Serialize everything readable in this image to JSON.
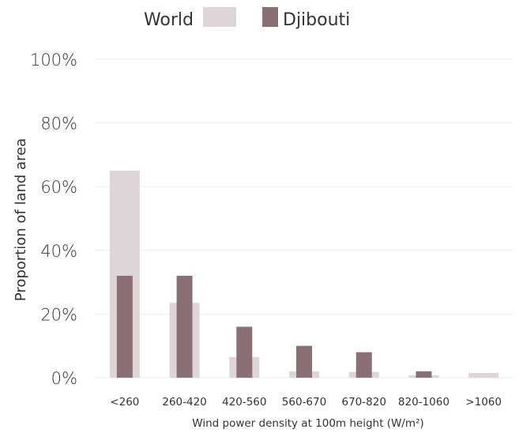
{
  "chart_data": {
    "type": "bar",
    "title": "",
    "xlabel": "Wind power density at 100m height (W/m²)",
    "ylabel": "Proportion of land area",
    "ylim": [
      0,
      100
    ],
    "yticks": [
      "0%",
      "20%",
      "40%",
      "60%",
      "80%",
      "100%"
    ],
    "ytick_values": [
      0,
      20,
      40,
      60,
      80,
      100
    ],
    "grid": true,
    "legend_position": "top",
    "categories": [
      "<260",
      "260-420",
      "420-560",
      "560-670",
      "670-820",
      "820-1060",
      ">1060"
    ],
    "series": [
      {
        "name": "World",
        "color": "#ddd5d7",
        "values": [
          65,
          23.5,
          6.5,
          2,
          1.8,
          0.7,
          1.5
        ]
      },
      {
        "name": "Djibouti",
        "color": "#8a7074",
        "values": [
          32,
          32,
          16,
          10,
          8,
          2,
          0
        ]
      }
    ]
  }
}
